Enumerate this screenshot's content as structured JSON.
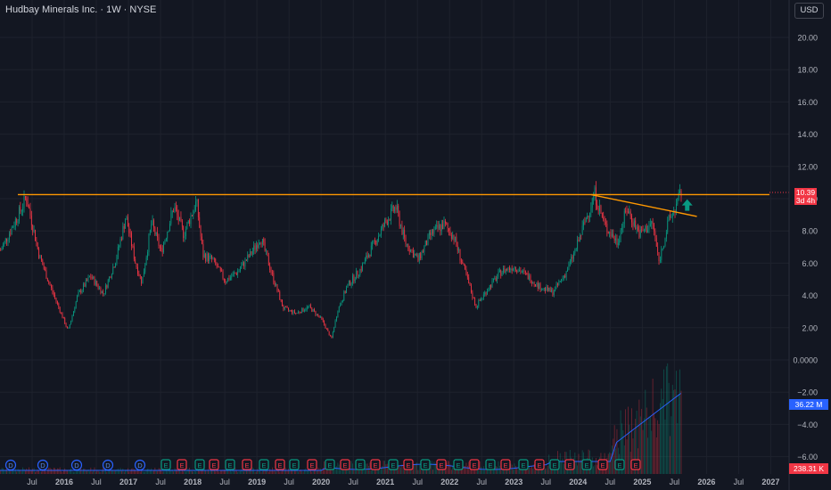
{
  "header": {
    "title": "Hudbay Minerals Inc. · 1W · NYSE",
    "currency": "USD"
  },
  "last_price": {
    "value": "10.39",
    "countdown": "3d 4h"
  },
  "volume_ma": "36.22 M",
  "volume_last": "238.31 K",
  "events": [
    "D",
    "D",
    "D",
    "D",
    "D",
    "E",
    "E",
    "E",
    "E",
    "E",
    "E",
    "E",
    "E",
    "E",
    "E",
    "E",
    "E",
    "E",
    "E",
    "E",
    "E",
    "E",
    "E",
    "E",
    "E",
    "E",
    "E",
    "E",
    "E",
    "E",
    "E",
    "E",
    "E",
    "E",
    "E"
  ],
  "colors": {
    "background": "#131722",
    "up": "#089981",
    "down": "#f23645",
    "line": "#ff9800",
    "ma": "#2962ff",
    "arrow": "#089981"
  },
  "chart_data": {
    "type": "line",
    "title": "Hudbay Minerals Inc. · 1W · NYSE",
    "x_ticks": [
      "Jul",
      "2016",
      "Jul",
      "2017",
      "Jul",
      "2018",
      "Jul",
      "2019",
      "Jul",
      "2020",
      "Jul",
      "2021",
      "Jul",
      "2022",
      "Jul",
      "2023",
      "Jul",
      "2024",
      "Jul",
      "2025",
      "Jul",
      "2026",
      "Jul",
      "2027"
    ],
    "y_ticks": [
      "20.00",
      "18.00",
      "16.00",
      "14.00",
      "12.00",
      "10.00",
      "8.00",
      "6.00",
      "4.00",
      "2.00",
      "0.0000",
      "−2.00",
      "−4.00",
      "−6.00"
    ],
    "ylim": [
      -6.6,
      21.5
    ],
    "series": [
      {
        "name": "Price",
        "x": [
          2015.0,
          2015.3,
          2015.4,
          2015.6,
          2015.75,
          2015.9,
          2016.05,
          2016.2,
          2016.4,
          2016.6,
          2016.8,
          2016.95,
          2017.1,
          2017.2,
          2017.35,
          2017.5,
          2017.7,
          2017.85,
          2018.05,
          2018.15,
          2018.3,
          2018.5,
          2018.7,
          2018.9,
          2019.05,
          2019.25,
          2019.4,
          2019.6,
          2019.8,
          2020.0,
          2020.15,
          2020.25,
          2020.4,
          2020.6,
          2020.8,
          2021.0,
          2021.15,
          2021.3,
          2021.5,
          2021.7,
          2021.9,
          2022.05,
          2022.25,
          2022.4,
          2022.6,
          2022.8,
          2023.0,
          2023.2,
          2023.4,
          2023.6,
          2023.8,
          2023.95,
          2024.1,
          2024.25,
          2024.4,
          2024.6,
          2024.75,
          2024.95,
          2025.15,
          2025.25,
          2025.4,
          2025.5,
          2025.6
        ],
        "y": [
          6.8,
          9.2,
          10.1,
          6.5,
          4.8,
          3.3,
          1.8,
          4.0,
          5.2,
          4.1,
          6.3,
          8.9,
          6.0,
          4.8,
          8.5,
          6.7,
          9.5,
          7.8,
          9.8,
          6.5,
          6.2,
          4.9,
          5.5,
          6.6,
          7.6,
          5.0,
          3.2,
          2.9,
          3.3,
          2.5,
          1.3,
          3.1,
          4.6,
          5.6,
          7.1,
          8.6,
          9.5,
          7.3,
          6.2,
          7.8,
          8.4,
          7.7,
          5.2,
          3.3,
          4.5,
          5.5,
          5.8,
          5.2,
          4.5,
          4.2,
          5.4,
          6.8,
          8.6,
          10.3,
          8.4,
          7.3,
          9.4,
          7.8,
          8.5,
          6.1,
          8.6,
          9.4,
          10.39
        ]
      },
      {
        "name": "Volume",
        "x": [],
        "y": []
      }
    ],
    "annotations": [
      {
        "type": "horizontal-line",
        "y": 10.25,
        "x": [
          2015.0,
          2027.0
        ]
      },
      {
        "type": "trend-line",
        "points": [
          [
            2024.2,
            10.25
          ],
          [
            2025.85,
            8.9
          ]
        ]
      },
      {
        "type": "arrow",
        "direction": "up",
        "x": 2025.7,
        "y": 9.3
      }
    ]
  }
}
